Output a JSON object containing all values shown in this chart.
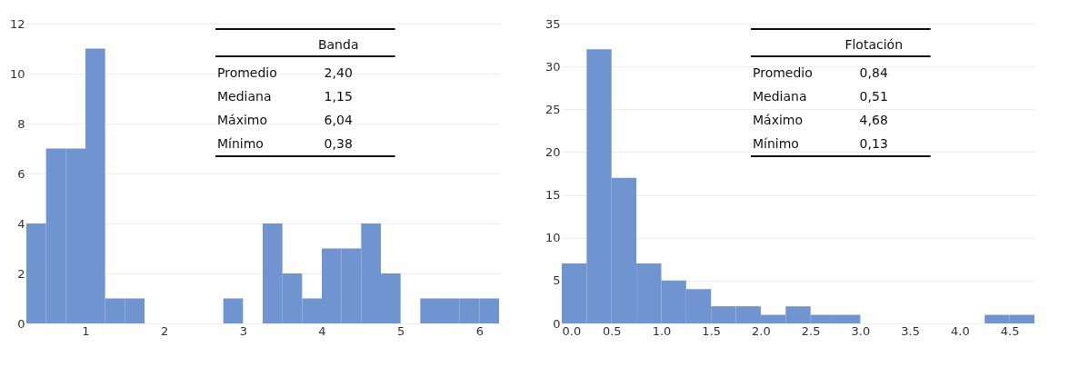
{
  "chart_data": [
    {
      "type": "histogram",
      "bins": [
        0.25,
        0.5,
        0.75,
        1.0,
        1.25,
        1.5,
        1.75,
        2.0,
        2.25,
        2.5,
        2.75,
        3.0,
        3.25,
        3.5,
        3.75,
        4.0,
        4.25,
        4.5,
        4.75,
        5.0,
        5.25,
        5.5,
        5.75,
        6.0,
        6.25
      ],
      "values": [
        4,
        7,
        7,
        11,
        1,
        1,
        0,
        0,
        0,
        0,
        1,
        0,
        4,
        2,
        1,
        3,
        3,
        4,
        2,
        0,
        1,
        1,
        1,
        1
      ],
      "color": "#7094cf",
      "xlim": [
        0.25,
        6.25
      ],
      "xticks": [
        1,
        2,
        3,
        4,
        5,
        6
      ],
      "ylim": [
        0,
        12
      ],
      "yticks": [
        0,
        2,
        4,
        6,
        8,
        10,
        12
      ],
      "grid": "y",
      "annotations": [
        "Banda",
        "Promedio",
        "2,40",
        "Mediana",
        "1,15",
        "Máximo",
        "6,04",
        "Mínimo",
        "0,38"
      ]
    },
    {
      "type": "histogram",
      "bins": [
        0,
        0.25,
        0.5,
        0.75,
        1.0,
        1.25,
        1.5,
        1.75,
        2.0,
        2.25,
        2.5,
        2.75,
        3.0,
        3.25,
        3.5,
        3.75,
        4.0,
        4.25,
        4.5,
        4.75
      ],
      "values": [
        7,
        32,
        17,
        7,
        5,
        4,
        2,
        2,
        1,
        2,
        1,
        1,
        0,
        0,
        0,
        0,
        0,
        1,
        1
      ],
      "color": "#7094cf",
      "xlim": [
        0,
        4.75
      ],
      "xticks": [
        {
          "value": 0,
          "label": "0.0"
        },
        0.5,
        {
          "value": 1,
          "label": "1.0"
        },
        1.5,
        {
          "value": 2,
          "label": "2.0"
        },
        2.5,
        {
          "value": 3,
          "label": "3.0"
        },
        3.5,
        {
          "value": 4,
          "label": "4.0"
        },
        4.5
      ],
      "ylim": [
        0,
        35
      ],
      "yticks": [
        0,
        5,
        10,
        15,
        20,
        25,
        30,
        35
      ],
      "grid": "y",
      "annotations": [
        "Flotación",
        "Promedio",
        "0,84",
        "Mediana",
        "0,51",
        "Máximo",
        "4,68",
        "Mínimo",
        "0,13"
      ]
    }
  ]
}
